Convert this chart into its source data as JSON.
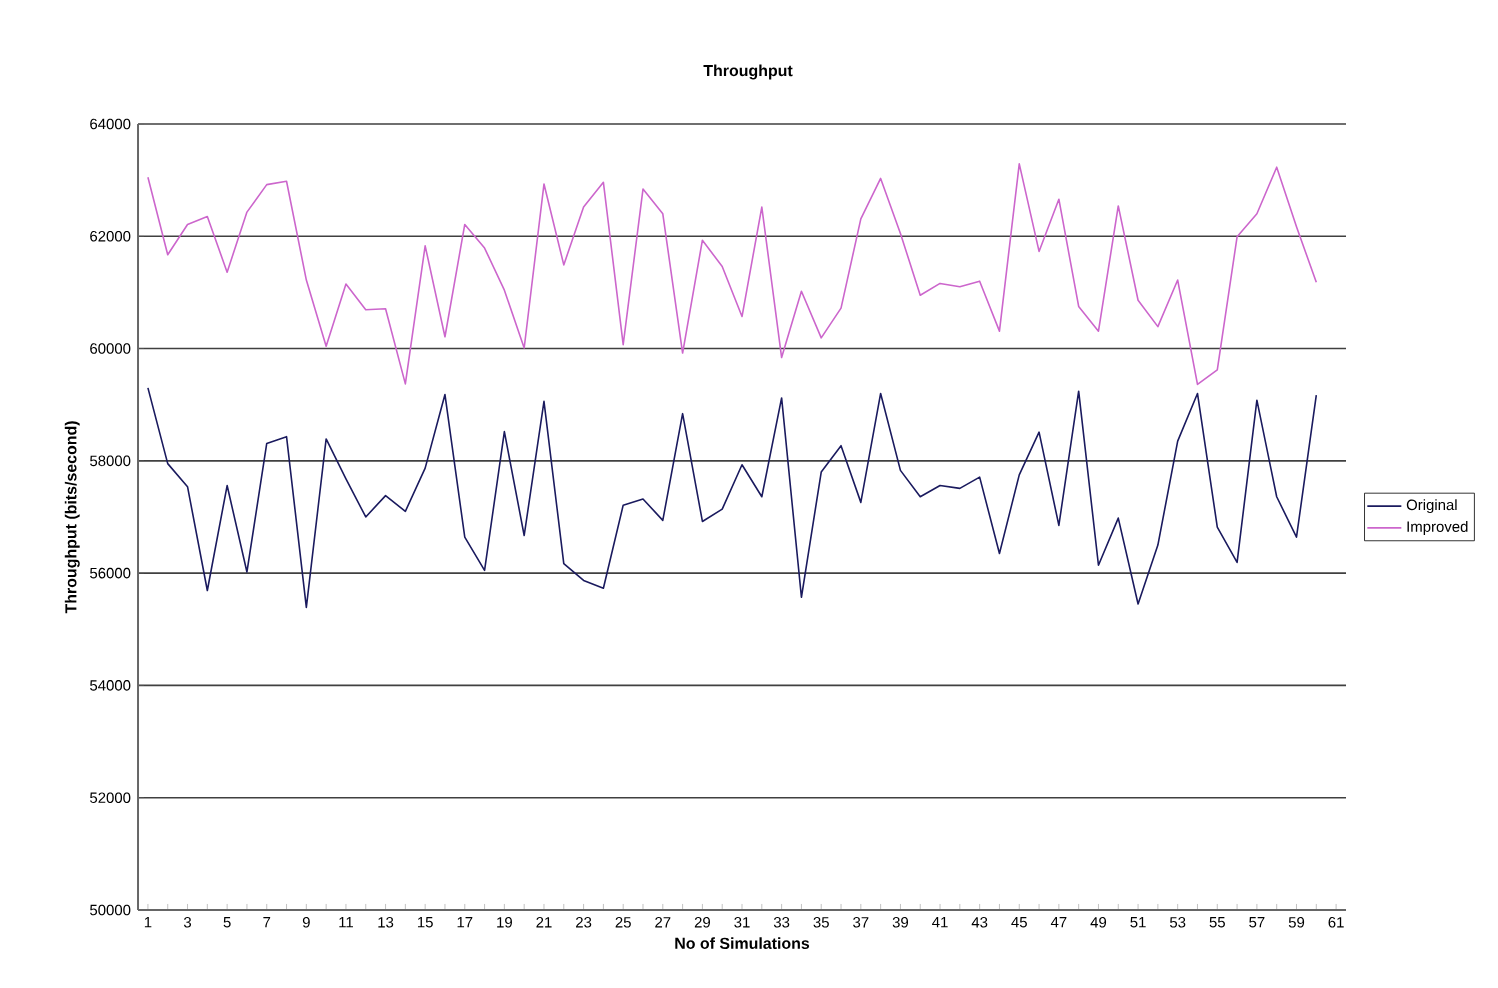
{
  "chart_data": {
    "type": "line",
    "title": "Throughput",
    "xlabel": "No of Simulations",
    "ylabel": "Throughput (bits/second)",
    "categories": [
      "1",
      null,
      "3",
      null,
      "5",
      null,
      "7",
      null,
      "9",
      null,
      "11",
      null,
      "13",
      null,
      "15",
      null,
      "17",
      null,
      "19",
      null,
      "21",
      null,
      "23",
      null,
      "25",
      null,
      "27",
      null,
      "29",
      null,
      "31",
      null,
      "33",
      null,
      "35",
      null,
      "37",
      null,
      "39",
      null,
      "41",
      null,
      "43",
      null,
      "45",
      null,
      "47",
      null,
      "49",
      null,
      "51",
      null,
      "53",
      null,
      "55",
      null,
      "57",
      null,
      "59",
      null,
      "61"
    ],
    "series": [
      {
        "name": "Original",
        "color": "#1a1a5e",
        "values": [
          59300,
          57950,
          57540,
          55690,
          57560,
          56020,
          58310,
          58430,
          55390,
          58390,
          57680,
          57000,
          57380,
          57100,
          57870,
          59180,
          56640,
          56050,
          58520,
          56670,
          59060,
          56170,
          55870,
          55730,
          57210,
          57320,
          56940,
          58840,
          56920,
          57140,
          57930,
          57360,
          59120,
          55570,
          57800,
          58270,
          57260,
          59200,
          57830,
          57360,
          57560,
          57510,
          57710,
          56350,
          57750,
          58510,
          56850,
          59240,
          56140,
          56980,
          55450,
          56500,
          58350,
          59200,
          56820,
          56190,
          59080,
          57360,
          56640,
          59170,
          null
        ]
      },
      {
        "name": "Improved",
        "color": "#cc66cc",
        "values": [
          63050,
          61670,
          62210,
          62350,
          61360,
          62430,
          62920,
          62980,
          61220,
          60040,
          61150,
          60690,
          60710,
          59370,
          61830,
          60210,
          62210,
          61790,
          61040,
          60010,
          62930,
          61490,
          62520,
          62960,
          60070,
          62840,
          62400,
          59920,
          61930,
          61460,
          60570,
          62520,
          59840,
          61020,
          60190,
          60720,
          62310,
          63030,
          62050,
          60950,
          61160,
          61100,
          61200,
          60310,
          63290,
          61730,
          62660,
          60750,
          60310,
          62540,
          60860,
          60390,
          61220,
          59360,
          59620,
          61990,
          62400,
          63230,
          62170,
          61180,
          null
        ]
      }
    ],
    "ylim": [
      50000,
      64000
    ],
    "yticks": [
      50000,
      52000,
      54000,
      56000,
      58000,
      60000,
      62000,
      64000
    ],
    "grid": "y",
    "legend": "right",
    "marker": "none",
    "line_style": "solid"
  }
}
